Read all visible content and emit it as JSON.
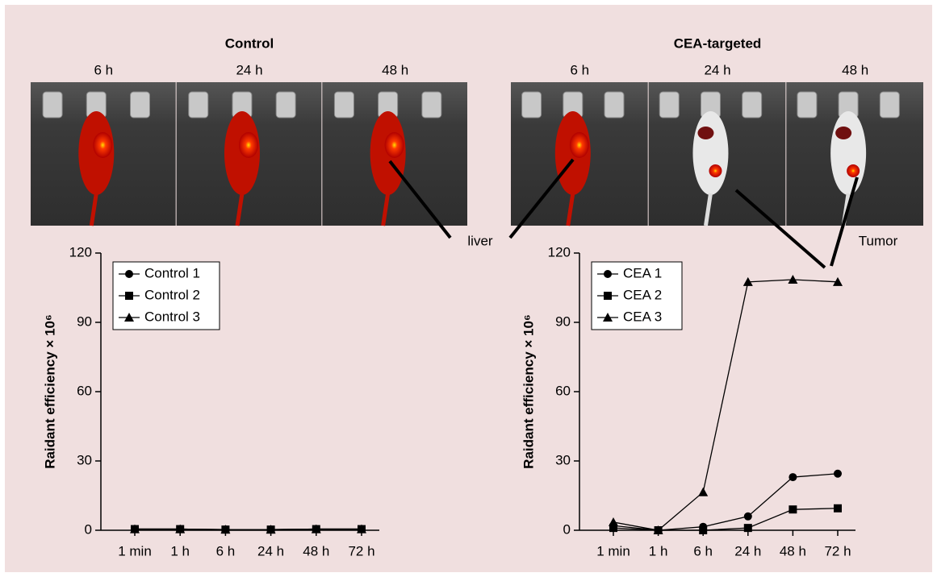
{
  "figure": {
    "groups": [
      {
        "title": "Control",
        "times": [
          "6 h",
          "24 h",
          "48 h"
        ]
      },
      {
        "title": "CEA-targeted",
        "times": [
          "6 h",
          "24 h",
          "48 h"
        ]
      }
    ],
    "annotations": [
      "liver",
      "Tumor"
    ]
  },
  "chart_data": [
    {
      "type": "line",
      "ylabel": "Raidant efficiency × 10⁶",
      "categories": [
        "1 min",
        "1 h",
        "6 h",
        "24 h",
        "48 h",
        "72 h"
      ],
      "ylim": [
        0,
        120
      ],
      "yticks": [
        0,
        30,
        60,
        90,
        120
      ],
      "legend": "upper left",
      "series": [
        {
          "name": "Control 1",
          "color": "#000000",
          "marker": "circle",
          "values": [
            0.5,
            0.5,
            0.3,
            0.3,
            0.5,
            0.5
          ]
        },
        {
          "name": "Control 2",
          "color": "#000000",
          "marker": "square",
          "values": [
            0.5,
            0.5,
            0.3,
            0.3,
            0.5,
            0.5
          ]
        },
        {
          "name": "Control 3",
          "color": "#000000",
          "marker": "triangle",
          "values": [
            0.5,
            0.5,
            0.3,
            0.3,
            0.5,
            0.5
          ]
        }
      ]
    },
    {
      "type": "line",
      "ylabel": "Raidant efficiency × 10⁶",
      "categories": [
        "1 min",
        "1 h",
        "6 h",
        "24 h",
        "48 h",
        "72 h"
      ],
      "ylim": [
        0,
        120
      ],
      "yticks": [
        0,
        30,
        60,
        90,
        120
      ],
      "legend": "upper left",
      "series": [
        {
          "name": "CEA 1",
          "color": "#000000",
          "marker": "circle",
          "values": [
            2,
            0,
            1.5,
            6,
            23,
            24.5
          ]
        },
        {
          "name": "CEA 2",
          "color": "#000000",
          "marker": "square",
          "values": [
            1,
            0,
            0,
            1,
            9,
            9.5
          ]
        },
        {
          "name": "CEA 3",
          "color": "#000000",
          "marker": "triangle",
          "values": [
            3.5,
            0,
            16.5,
            107.5,
            108.5,
            107.5
          ]
        }
      ]
    }
  ]
}
